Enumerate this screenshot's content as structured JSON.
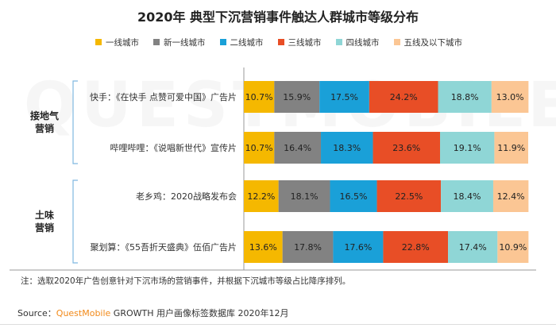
{
  "title": "2020年 典型下沉营销事件触达人群城市等级分布",
  "watermark": "QUESTMOBILE",
  "note": "注：选取2020年广告创意针对下沉市场的营销事件，并根据下沉城市等级占比降序排列。",
  "source": {
    "prefix": "Source：",
    "brand": "QuestMobile",
    "suffix": " GROWTH 用户画像标签数据库 2020年12月"
  },
  "chart_data": {
    "type": "bar",
    "orientation": "horizontal",
    "stacked": true,
    "percent": true,
    "title": "2020年 典型下沉营销事件触达人群城市等级分布",
    "legend_position": "top",
    "groups": [
      {
        "label": "接地气\n营销",
        "categories": [
          0,
          1
        ]
      },
      {
        "label": "土味\n营销",
        "categories": [
          2,
          3
        ]
      }
    ],
    "categories": [
      "快手：《在快手 点赞可爱中国》广告片",
      "哔哩哔哩：《说唱新世代》宣传片",
      "老乡鸡：2020战略发布会",
      "聚划算：《55吾折天盛典》伍佰广告片"
    ],
    "series": [
      {
        "name": "一线城市",
        "color": "#f5b800",
        "values": [
          10.7,
          10.7,
          12.2,
          13.6
        ]
      },
      {
        "name": "新一线城市",
        "color": "#828282",
        "values": [
          15.9,
          16.4,
          18.1,
          17.8
        ]
      },
      {
        "name": "二线城市",
        "color": "#1aa0d8",
        "values": [
          17.5,
          18.3,
          16.5,
          17.6
        ]
      },
      {
        "name": "三线城市",
        "color": "#e84e26",
        "values": [
          24.2,
          23.6,
          22.5,
          22.8
        ]
      },
      {
        "name": "四线城市",
        "color": "#8fd6d6",
        "values": [
          18.8,
          19.1,
          18.4,
          17.4
        ]
      },
      {
        "name": "五线及以下城市",
        "color": "#fbc694",
        "values": [
          13.0,
          11.9,
          12.4,
          10.9
        ]
      }
    ],
    "value_suffix": "%"
  }
}
